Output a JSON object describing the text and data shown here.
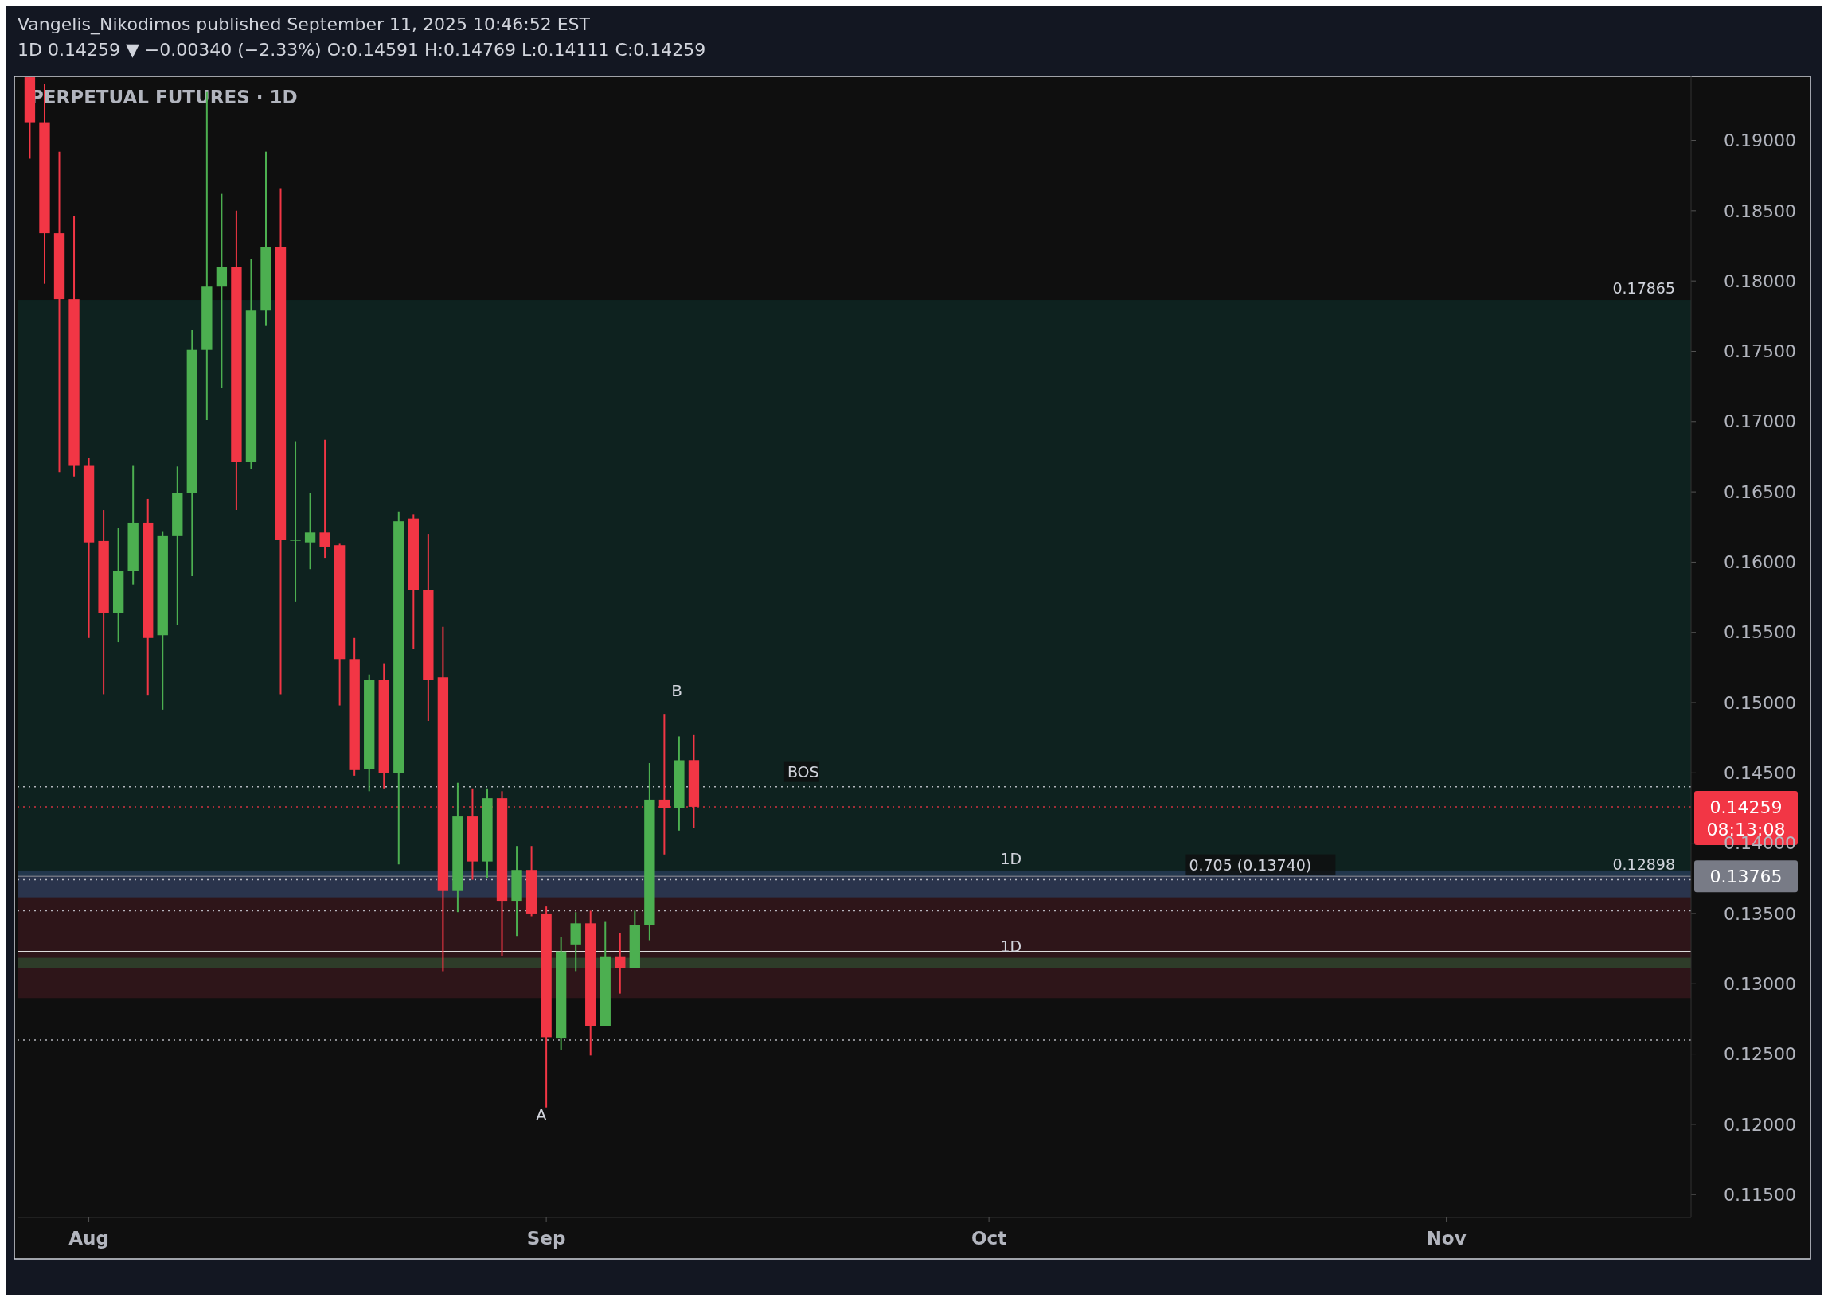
{
  "chart_data": {
    "type": "candlestick",
    "title": "PERPETUAL FUTURES · 1D",
    "subtitle": "Vangelis_Nikodimos published September 11, 2025 10:46:52 EST\n1D 0.14259 ▼ −0.00340 (−2.33%) O:0.14591 H:0.14769 L:0.14111 C:0.14259",
    "x": [
      "2025-07-28",
      "2025-07-29",
      "2025-07-30",
      "2025-07-31",
      "2025-08-01",
      "2025-08-02",
      "2025-08-03",
      "2025-08-04",
      "2025-08-05",
      "2025-08-06",
      "2025-08-07",
      "2025-08-08",
      "2025-08-09",
      "2025-08-10",
      "2025-08-11",
      "2025-08-12",
      "2025-08-13",
      "2025-08-14",
      "2025-08-15",
      "2025-08-16",
      "2025-08-17",
      "2025-08-18",
      "2025-08-19",
      "2025-08-20",
      "2025-08-21",
      "2025-08-22",
      "2025-08-23",
      "2025-08-24",
      "2025-08-25",
      "2025-08-26",
      "2025-08-27",
      "2025-08-28",
      "2025-08-29",
      "2025-08-30",
      "2025-08-31",
      "2025-09-01",
      "2025-09-02",
      "2025-09-03",
      "2025-09-04",
      "2025-09-05",
      "2025-09-06",
      "2025-09-07",
      "2025-09-08",
      "2025-09-09",
      "2025-09-10",
      "2025-09-11"
    ],
    "ohlc": [
      [
        0.1945,
        0.1945,
        0.1887,
        0.1913
      ],
      [
        0.1913,
        0.194,
        0.1798,
        0.1834
      ],
      [
        0.1834,
        0.1892,
        0.1664,
        0.1787
      ],
      [
        0.1787,
        0.1846,
        0.1661,
        0.1669
      ],
      [
        0.1669,
        0.1674,
        0.1546,
        0.1614
      ],
      [
        0.1615,
        0.1637,
        0.1506,
        0.1564
      ],
      [
        0.1564,
        0.1624,
        0.1543,
        0.1594
      ],
      [
        0.1594,
        0.1669,
        0.1584,
        0.1628
      ],
      [
        0.1628,
        0.1645,
        0.1505,
        0.1546
      ],
      [
        0.1548,
        0.1622,
        0.1495,
        0.1619
      ],
      [
        0.1619,
        0.1668,
        0.1555,
        0.1649
      ],
      [
        0.1649,
        0.1765,
        0.159,
        0.1751
      ],
      [
        0.1751,
        0.1935,
        0.1701,
        0.1796
      ],
      [
        0.1796,
        0.1862,
        0.1724,
        0.181
      ],
      [
        0.181,
        0.185,
        0.1637,
        0.1671
      ],
      [
        0.1671,
        0.1816,
        0.1666,
        0.1779
      ],
      [
        0.1779,
        0.1892,
        0.1768,
        0.1824
      ],
      [
        0.1824,
        0.1866,
        0.1506,
        0.1616
      ],
      [
        0.1616,
        0.1686,
        0.1572,
        0.1616
      ],
      [
        0.1614,
        0.1649,
        0.1595,
        0.1621
      ],
      [
        0.1621,
        0.1687,
        0.1603,
        0.1611
      ],
      [
        0.1612,
        0.1613,
        0.1498,
        0.1531
      ],
      [
        0.1531,
        0.1546,
        0.1448,
        0.1452
      ],
      [
        0.1453,
        0.152,
        0.1437,
        0.1516
      ],
      [
        0.1516,
        0.1528,
        0.1439,
        0.145
      ],
      [
        0.145,
        0.1636,
        0.1385,
        0.1629
      ],
      [
        0.1631,
        0.1634,
        0.1538,
        0.158
      ],
      [
        0.158,
        0.162,
        0.1487,
        0.1516
      ],
      [
        0.1518,
        0.1554,
        0.1309,
        0.1366
      ],
      [
        0.1366,
        0.1443,
        0.1351,
        0.1419
      ],
      [
        0.1419,
        0.1439,
        0.1374,
        0.1387
      ],
      [
        0.1387,
        0.1439,
        0.1375,
        0.1432
      ],
      [
        0.1432,
        0.1437,
        0.132,
        0.1359
      ],
      [
        0.1359,
        0.1398,
        0.1334,
        0.1381
      ],
      [
        0.1381,
        0.1398,
        0.1348,
        0.135
      ],
      [
        0.135,
        0.1355,
        0.1212,
        0.1262
      ],
      [
        0.1261,
        0.1333,
        0.1253,
        0.1323
      ],
      [
        0.1328,
        0.1351,
        0.1309,
        0.1343
      ],
      [
        0.1343,
        0.1352,
        0.1249,
        0.127
      ],
      [
        0.127,
        0.1344,
        0.127,
        0.1319
      ],
      [
        0.1319,
        0.1336,
        0.1293,
        0.1311
      ],
      [
        0.1311,
        0.1352,
        0.1311,
        0.1342
      ],
      [
        0.1342,
        0.1457,
        0.1331,
        0.1431
      ],
      [
        0.1431,
        0.1492,
        0.1392,
        0.1425
      ],
      [
        0.1425,
        0.1476,
        0.1409,
        0.1459
      ],
      [
        0.14591,
        0.14769,
        0.14111,
        0.14259
      ]
    ],
    "xlim": [
      "2025-07-27T04:00",
      "2025-11-17T14:00"
    ],
    "xticks": [
      {
        "value": "2025-08-01",
        "label": "Aug"
      },
      {
        "value": "2025-09-01",
        "label": "Sep"
      },
      {
        "value": "2025-10-01",
        "label": "Oct"
      },
      {
        "value": "2025-11-01",
        "label": "Nov"
      }
    ],
    "ylim": [
      0.11337,
      0.19456
    ],
    "yticks": [
      {
        "value": 0.115,
        "label": "0.11500"
      },
      {
        "value": 0.12,
        "label": "0.12000"
      },
      {
        "value": 0.125,
        "label": "0.12500"
      },
      {
        "value": 0.13,
        "label": "0.13000"
      },
      {
        "value": 0.135,
        "label": "0.13500"
      },
      {
        "value": 0.14,
        "label": "0.14000"
      },
      {
        "value": 0.145,
        "label": "0.14500"
      },
      {
        "value": 0.15,
        "label": "0.15000"
      },
      {
        "value": 0.155,
        "label": "0.15500"
      },
      {
        "value": 0.16,
        "label": "0.16000"
      },
      {
        "value": 0.165,
        "label": "0.16500"
      },
      {
        "value": 0.17,
        "label": "0.17000"
      },
      {
        "value": 0.175,
        "label": "0.17500"
      },
      {
        "value": 0.18,
        "label": "0.18000"
      },
      {
        "value": 0.185,
        "label": "0.18500"
      },
      {
        "value": 0.19,
        "label": "0.19000"
      }
    ],
    "grid": false,
    "ref_lines": [
      {
        "axis": "y",
        "value": 0.14259,
        "label": "0.14259",
        "color": "#f23645",
        "line_style": "dotted"
      },
      {
        "axis": "y",
        "value": 0.13765,
        "label": "0.13765",
        "color": "#787b86",
        "line_style": "solid"
      },
      {
        "axis": "y",
        "value": 0.14402,
        "label": "BOS",
        "color": "#d1d4dc",
        "line_style": "dotted"
      },
      {
        "axis": "y",
        "value": 0.1374,
        "label": "0.705 (0.13740)",
        "color": "#d1d4dc",
        "line_style": "dotted"
      },
      {
        "axis": "y",
        "value": 0.1352,
        "label": null,
        "color": "#d1d4dc",
        "line_style": "dotted"
      },
      {
        "axis": "y",
        "value": 0.126,
        "label": null,
        "color": "#d1d4dc",
        "line_style": "dotted"
      },
      {
        "axis": "y",
        "value": 0.1323,
        "label": null,
        "color": "#ffffff",
        "line_style": "solid"
      }
    ],
    "bands": [
      {
        "axis": "y",
        "from": 0.13765,
        "to": 0.17865,
        "label": "0.17865",
        "color": "#0f2a25"
      },
      {
        "axis": "y",
        "from": 0.12898,
        "to": 0.13765,
        "label": "0.12898",
        "color": "#3a181d"
      },
      {
        "axis": "y",
        "from": 0.13615,
        "to": 0.13806,
        "label": "1D",
        "color": "#2a3f5e"
      },
      {
        "axis": "y",
        "from": 0.1311,
        "to": 0.13185,
        "label": "1D",
        "color": "#2f4a2f"
      }
    ],
    "annotations": [
      "A",
      "B",
      "08:13:08"
    ]
  }
}
